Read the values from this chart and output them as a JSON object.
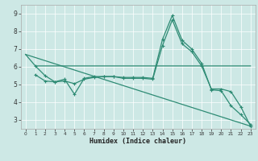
{
  "xlabel": "Humidex (Indice chaleur)",
  "background_color": "#cde8e5",
  "grid_color": "#ffffff",
  "line_color": "#2e8b74",
  "xlim": [
    -0.5,
    23.5
  ],
  "ylim": [
    2.5,
    9.5
  ],
  "xticks": [
    0,
    1,
    2,
    3,
    4,
    5,
    6,
    7,
    8,
    9,
    10,
    11,
    12,
    13,
    14,
    15,
    16,
    17,
    18,
    19,
    20,
    21,
    22,
    23
  ],
  "yticks": [
    3,
    4,
    5,
    6,
    7,
    8,
    9
  ],
  "series_flat": {
    "x": [
      0,
      1,
      2,
      3,
      4,
      5,
      6,
      7,
      8,
      9,
      10,
      11,
      12,
      13,
      14,
      15,
      16,
      17,
      18,
      19,
      20,
      21,
      22,
      23
    ],
    "y": [
      6.7,
      6.05,
      6.05,
      6.05,
      6.05,
      6.05,
      6.05,
      6.05,
      6.05,
      6.05,
      6.05,
      6.05,
      6.05,
      6.05,
      6.05,
      6.05,
      6.05,
      6.05,
      6.05,
      6.05,
      6.05,
      6.05,
      6.05,
      6.05
    ]
  },
  "series_peak1": {
    "x": [
      1,
      2,
      3,
      4,
      5,
      6,
      7,
      8,
      9,
      10,
      11,
      12,
      13,
      14,
      15,
      16,
      17,
      18,
      19,
      20,
      21,
      22,
      23
    ],
    "y": [
      6.05,
      5.5,
      5.15,
      5.3,
      4.45,
      5.35,
      5.45,
      5.45,
      5.45,
      5.4,
      5.4,
      5.4,
      5.35,
      7.55,
      8.9,
      7.5,
      7.0,
      6.2,
      4.7,
      4.65,
      3.8,
      3.3,
      2.75
    ]
  },
  "series_peak2": {
    "x": [
      1,
      2,
      3,
      4,
      5,
      6,
      7,
      8,
      9,
      10,
      11,
      12,
      13,
      14,
      15,
      16,
      17,
      18,
      19,
      20,
      21,
      22,
      23
    ],
    "y": [
      5.55,
      5.2,
      5.15,
      5.2,
      5.05,
      5.3,
      5.4,
      5.45,
      5.45,
      5.35,
      5.35,
      5.35,
      5.3,
      7.2,
      8.65,
      7.3,
      6.85,
      6.05,
      4.75,
      4.75,
      4.6,
      3.75,
      2.65
    ]
  },
  "series_diag": {
    "x": [
      0,
      23
    ],
    "y": [
      6.7,
      2.65
    ]
  }
}
